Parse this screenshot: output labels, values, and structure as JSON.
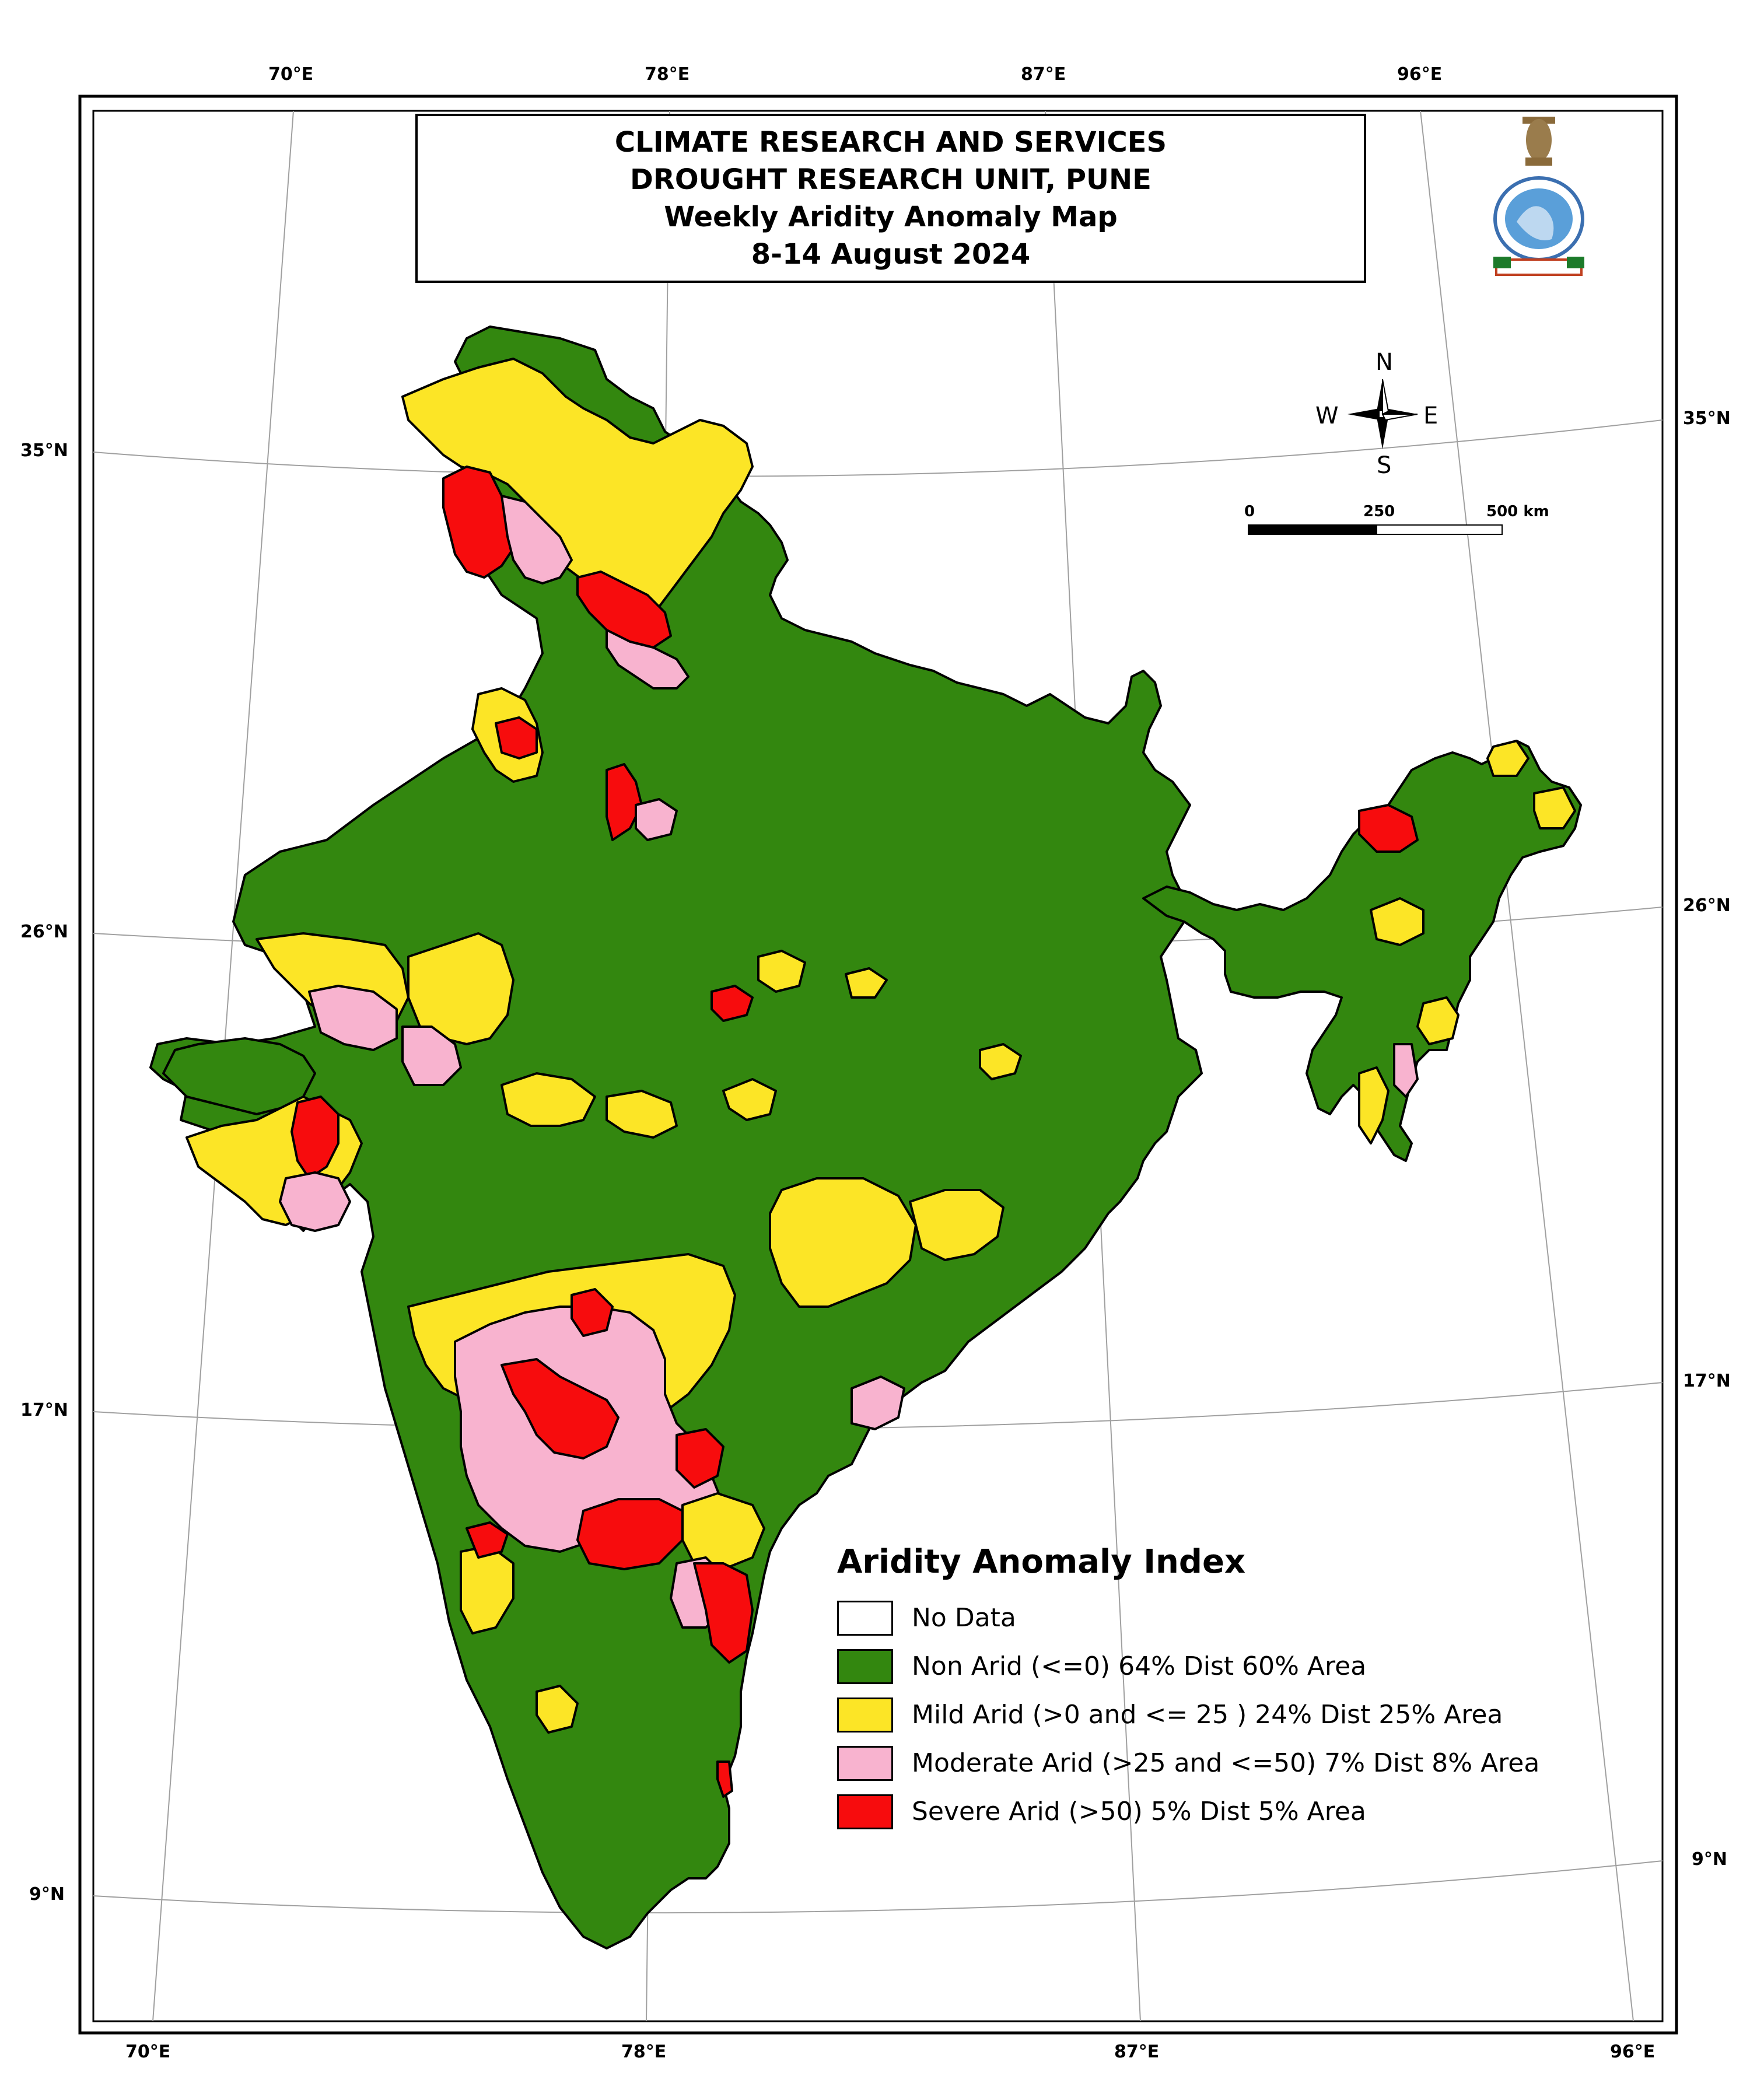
{
  "title": {
    "line1": "CLIMATE RESEARCH AND SERVICES",
    "line2": "DROUGHT RESEARCH UNIT, PUNE",
    "line3": "Weekly Aridity Anomaly Map",
    "line4": "8-14 August 2024"
  },
  "graticule": {
    "top_lon": [
      "70°E",
      "78°E",
      "87°E",
      "96°E"
    ],
    "bottom_lon": [
      "70°E",
      "78°E",
      "87°E",
      "96°E"
    ],
    "left_lat": [
      "35°N",
      "26°N",
      "17°N",
      "9°N"
    ],
    "right_lat": [
      "35°N",
      "26°N",
      "17°N",
      "9°N"
    ]
  },
  "compass": {
    "n": "N",
    "s": "S",
    "e": "E",
    "w": "W"
  },
  "scale": {
    "zero": "0",
    "mid": "250",
    "end": "500 km"
  },
  "legend": {
    "title": "Aridity Anomaly Index",
    "items": [
      {
        "label": "No Data",
        "color": "#ffffff"
      },
      {
        "label": "Non Arid (<=0) 64% Dist 60% Area",
        "color": "#33870f"
      },
      {
        "label": "Mild Arid (>0 and <= 25 )  24% Dist 25% Area",
        "color": "#fce526"
      },
      {
        "label": "Moderate Arid (>25 and <=50)  7% Dist 8% Area",
        "color": "#f8b3cf"
      },
      {
        "label": "Severe Arid (>50) 5% Dist 5% Area",
        "color": "#f70c0d"
      }
    ]
  },
  "colors": {
    "non_arid": "#33870f",
    "mild_arid": "#fce526",
    "moderate_arid": "#f8b3cf",
    "severe_arid": "#f70c0d",
    "graticule": "#a0a0a0"
  },
  "logo": {
    "name": "imd-emblem-icon"
  }
}
